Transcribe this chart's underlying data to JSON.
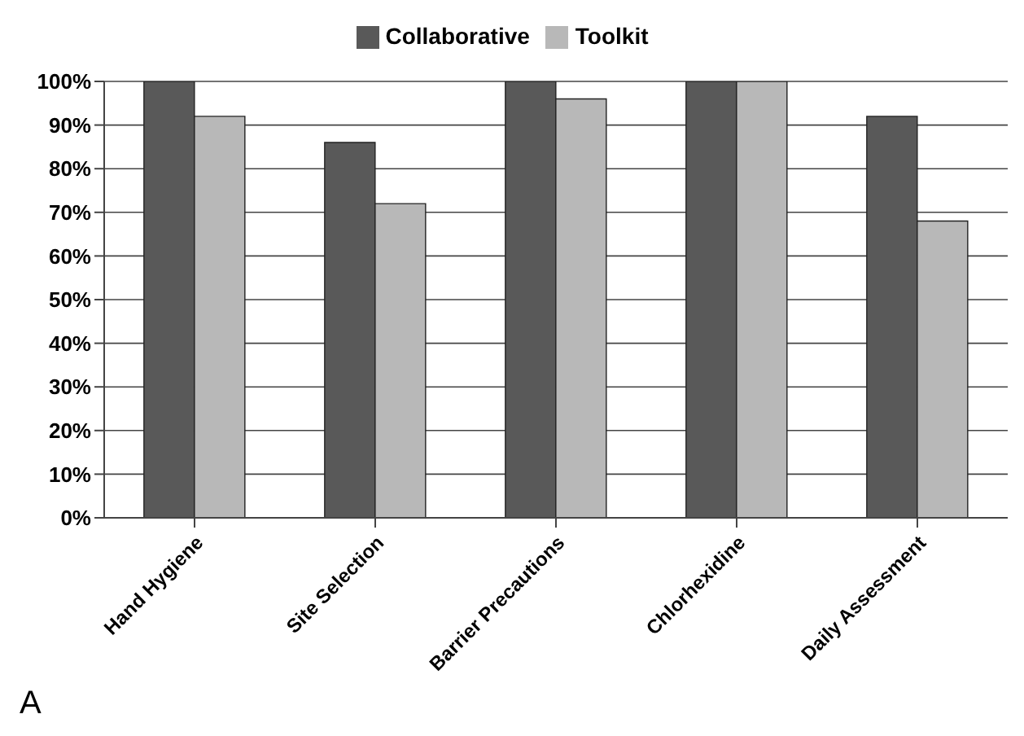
{
  "chart_data": {
    "type": "bar",
    "categories": [
      "Hand Hygiene",
      "Site Selection",
      "Barrier Precautions",
      "Chlorhexidine",
      "Daily Assessment"
    ],
    "series": [
      {
        "name": "Collaborative",
        "color": "#595959",
        "values": [
          100,
          86,
          100,
          100,
          92
        ]
      },
      {
        "name": "Toolkit",
        "color": "#b8b8b8",
        "values": [
          92,
          72,
          96,
          100,
          68
        ]
      }
    ],
    "ylim": [
      0,
      100
    ],
    "yticks": [
      {
        "value": 0,
        "label": "0%"
      },
      {
        "value": 10,
        "label": "10%"
      },
      {
        "value": 20,
        "label": "20%"
      },
      {
        "value": 30,
        "label": "30%"
      },
      {
        "value": 40,
        "label": "40%"
      },
      {
        "value": 50,
        "label": "50%"
      },
      {
        "value": 60,
        "label": "60%"
      },
      {
        "value": 70,
        "label": "70%"
      },
      {
        "value": 80,
        "label": "80%"
      },
      {
        "value": 90,
        "label": "90%"
      },
      {
        "value": 100,
        "label": "100%"
      }
    ],
    "grid": "y",
    "legend": "top",
    "annotations": [
      "A"
    ]
  }
}
